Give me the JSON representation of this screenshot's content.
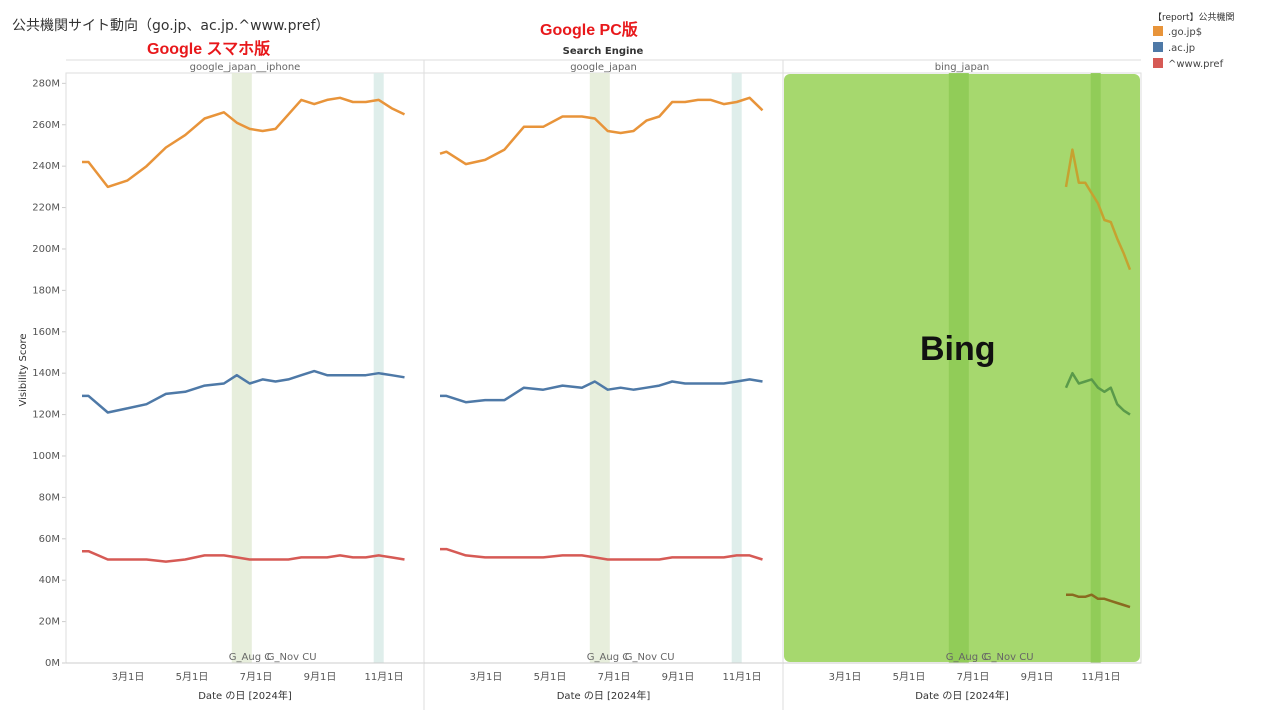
{
  "title": "公共機関サイト動向（go.jp、ac.jp.^www.pref）",
  "header": "Search Engine",
  "overlays": {
    "smartphone": "Google スマホ版",
    "pc": "Google PC版",
    "bing": "Bing"
  },
  "legend": {
    "title": "【report】公共機関",
    "items": [
      {
        "label": ".go.jp$",
        "color": "#e8943a"
      },
      {
        "label": ".ac.jp",
        "color": "#4e79a7"
      },
      {
        "label": "^www.pref",
        "color": "#d65a55"
      }
    ]
  },
  "update_labels": [
    "G_Aug C",
    "G_Nov CU"
  ],
  "chart_data": {
    "type": "line",
    "ylabel": "Visibility Score",
    "xlabel": "Date の日 [2024年]",
    "ylim": [
      0,
      285
    ],
    "y_ticks": [
      "0M",
      "20M",
      "40M",
      "60M",
      "80M",
      "100M",
      "120M",
      "140M",
      "160M",
      "180M",
      "200M",
      "220M",
      "240M",
      "260M",
      "280M"
    ],
    "x_ticks": [
      "3月1日",
      "5月1日",
      "7月1日",
      "9月1日",
      "11月1日"
    ],
    "panels": [
      {
        "name": "google_japan__iphone",
        "series": [
          {
            "name": ".go.jp$",
            "color": "#e8943a",
            "x": [
              1,
              1.5,
              3,
              4.5,
              6,
              7.5,
              9,
              10.5,
              12,
              13,
              14,
              15,
              16,
              17,
              18,
              19,
              20,
              21,
              22,
              23,
              24,
              25,
              26
            ],
            "y": [
              242,
              242,
              230,
              233,
              240,
              249,
              255,
              263,
              266,
              261,
              258,
              257,
              258,
              265,
              272,
              270,
              272,
              273,
              271,
              271,
              272,
              268,
              265
            ]
          },
          {
            "name": ".ac.jp",
            "color": "#4e79a7",
            "x": [
              1,
              1.5,
              3,
              4.5,
              6,
              7.5,
              9,
              10.5,
              12,
              13,
              14,
              15,
              16,
              17,
              18,
              19,
              20,
              21,
              22,
              23,
              24,
              25,
              26
            ],
            "y": [
              129,
              129,
              121,
              123,
              125,
              130,
              131,
              134,
              135,
              139,
              135,
              137,
              136,
              137,
              139,
              141,
              139,
              139,
              139,
              139,
              140,
              139,
              138
            ]
          },
          {
            "name": "^www.pref",
            "color": "#d65a55",
            "x": [
              1,
              1.5,
              3,
              4.5,
              6,
              7.5,
              9,
              10.5,
              12,
              13,
              14,
              15,
              16,
              17,
              18,
              19,
              20,
              21,
              22,
              23,
              24,
              25,
              26
            ],
            "y": [
              54,
              54,
              50,
              50,
              50,
              49,
              50,
              52,
              52,
              51,
              50,
              50,
              50,
              50,
              51,
              51,
              51,
              52,
              51,
              51,
              52,
              51,
              50
            ]
          }
        ]
      },
      {
        "name": "google_japan",
        "series": [
          {
            "name": ".go.jp$",
            "color": "#e8943a",
            "x": [
              1,
              1.5,
              3,
              4.5,
              6,
              7.5,
              9,
              10.5,
              12,
              13,
              14,
              15,
              16,
              17,
              18,
              19,
              20,
              21,
              22,
              23,
              24,
              25,
              26
            ],
            "y": [
              246,
              247,
              241,
              243,
              248,
              259,
              259,
              264,
              264,
              263,
              257,
              256,
              257,
              262,
              264,
              271,
              271,
              272,
              272,
              270,
              271,
              273,
              267
            ]
          },
          {
            "name": ".ac.jp",
            "color": "#4e79a7",
            "x": [
              1,
              1.5,
              3,
              4.5,
              6,
              7.5,
              9,
              10.5,
              12,
              13,
              14,
              15,
              16,
              17,
              18,
              19,
              20,
              21,
              22,
              23,
              24,
              25,
              26
            ],
            "y": [
              129,
              129,
              126,
              127,
              127,
              133,
              132,
              134,
              133,
              136,
              132,
              133,
              132,
              133,
              134,
              136,
              135,
              135,
              135,
              135,
              136,
              137,
              136
            ]
          },
          {
            "name": "^www.pref",
            "color": "#d65a55",
            "x": [
              1,
              1.5,
              3,
              4.5,
              6,
              7.5,
              9,
              10.5,
              12,
              13,
              14,
              15,
              16,
              17,
              18,
              19,
              20,
              21,
              22,
              23,
              24,
              25,
              26
            ],
            "y": [
              55,
              55,
              52,
              51,
              51,
              51,
              51,
              52,
              52,
              51,
              50,
              50,
              50,
              50,
              50,
              51,
              51,
              51,
              51,
              51,
              52,
              52,
              50
            ]
          }
        ]
      },
      {
        "name": "bing_japan",
        "series": [
          {
            "name": ".go.jp$",
            "color": "#c6a230",
            "x": [
              16,
              16.4,
              16.8,
              17.2,
              17.6,
              18,
              18.4,
              18.8,
              19.2,
              19.6,
              20
            ],
            "y": [
              230,
              248,
              232,
              232,
              227,
              222,
              214,
              213,
              205,
              198,
              190
            ]
          },
          {
            "name": ".ac.jp",
            "color": "#5a9a4a",
            "x": [
              16,
              16.4,
              16.8,
              17.2,
              17.6,
              18,
              18.4,
              18.8,
              19.2,
              19.6,
              20
            ],
            "y": [
              133,
              140,
              135,
              136,
              137,
              133,
              131,
              133,
              125,
              122,
              120
            ]
          },
          {
            "name": "^www.pref",
            "color": "#8a6a20",
            "x": [
              16,
              16.4,
              16.8,
              17.2,
              17.6,
              18,
              18.4,
              18.8,
              19.2,
              19.6,
              20
            ],
            "y": [
              33,
              33,
              32,
              32,
              33,
              31,
              31,
              30,
              29,
              28,
              27
            ]
          }
        ]
      }
    ]
  }
}
